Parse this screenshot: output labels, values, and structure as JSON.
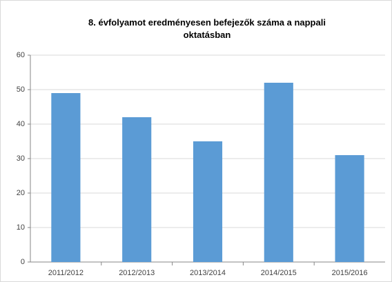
{
  "chart_data": {
    "type": "bar",
    "title": "8. évfolyamot eredményesen befejezők száma  a nappali oktatásban",
    "categories": [
      "2011/2012",
      "2012/2013",
      "2013/2014",
      "2014/2015",
      "2015/2016"
    ],
    "values": [
      49,
      42,
      35,
      52,
      31
    ],
    "color": "#5b9bd5",
    "ylim": [
      0,
      60
    ],
    "yticks": [
      0,
      10,
      20,
      30,
      40,
      50,
      60
    ],
    "grid": true
  }
}
